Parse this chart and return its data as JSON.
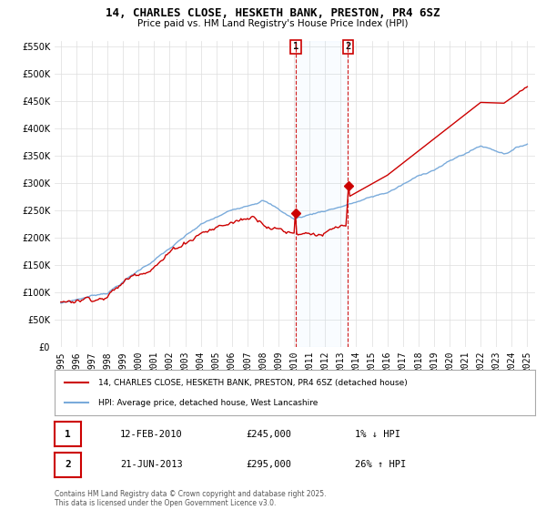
{
  "title_line1": "14, CHARLES CLOSE, HESKETH BANK, PRESTON, PR4 6SZ",
  "title_line2": "Price paid vs. HM Land Registry's House Price Index (HPI)",
  "legend_label_red": "14, CHARLES CLOSE, HESKETH BANK, PRESTON, PR4 6SZ (detached house)",
  "legend_label_blue": "HPI: Average price, detached house, West Lancashire",
  "annotation1_label": "1",
  "annotation1_date": "12-FEB-2010",
  "annotation1_price": "£245,000",
  "annotation1_hpi": "1% ↓ HPI",
  "annotation2_label": "2",
  "annotation2_date": "21-JUN-2013",
  "annotation2_price": "£295,000",
  "annotation2_hpi": "26% ↑ HPI",
  "footnote": "Contains HM Land Registry data © Crown copyright and database right 2025.\nThis data is licensed under the Open Government Licence v3.0.",
  "ylim_min": 0,
  "ylim_max": 560000,
  "yticks": [
    0,
    50000,
    100000,
    150000,
    200000,
    250000,
    300000,
    350000,
    400000,
    450000,
    500000,
    550000
  ],
  "background_color": "#ffffff",
  "grid_color": "#dddddd",
  "red_color": "#cc0000",
  "blue_color": "#7aabdb",
  "vline_color": "#cc0000",
  "vline1_x": 2010.12,
  "vline2_x": 2013.47,
  "purchase1_y": 245000,
  "purchase2_y": 295000,
  "xlim_min": 1994.6,
  "xlim_max": 2025.5
}
